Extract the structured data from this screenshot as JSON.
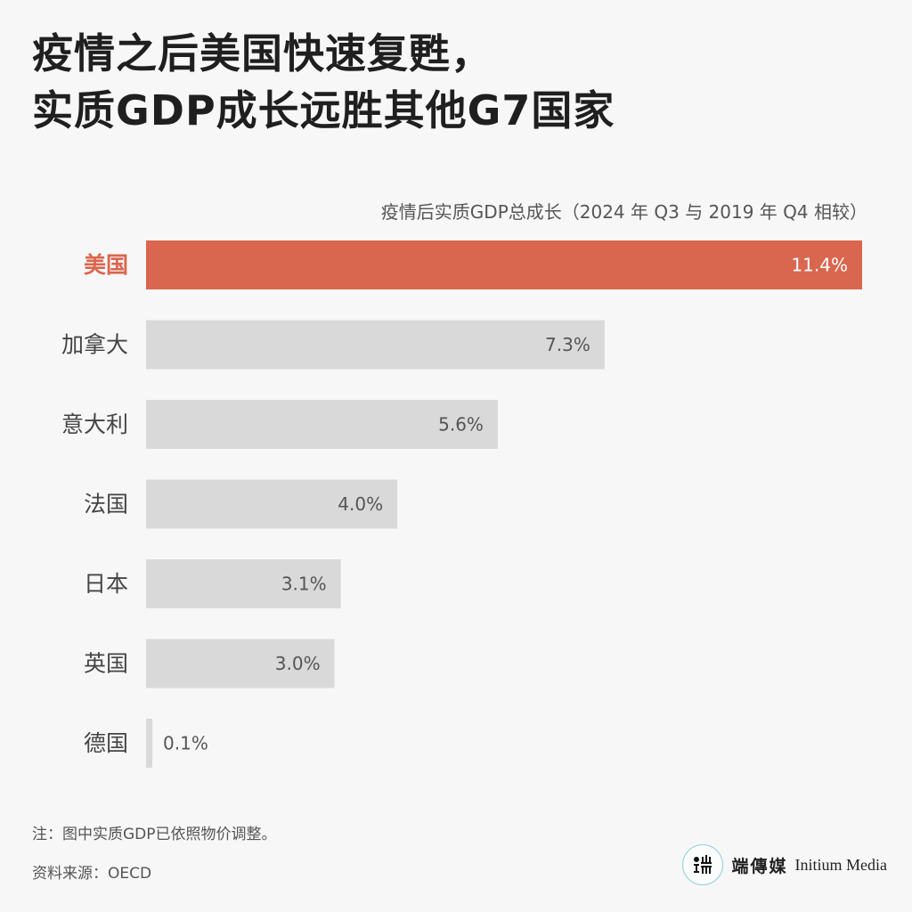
{
  "title": {
    "line1": "疫情之后美国快速复甦，",
    "line2": "实质GDP成长远胜其他G7国家"
  },
  "chart_data": {
    "type": "bar",
    "orientation": "horizontal",
    "title": "疫情后实质GDP总成长（2024 年 Q3 与 2019 年 Q4 相较）",
    "categories": [
      "美国",
      "加拿大",
      "意大利",
      "法国",
      "日本",
      "英国",
      "德国"
    ],
    "values": [
      11.4,
      7.3,
      5.6,
      4.0,
      3.1,
      3.0,
      0.1
    ],
    "value_labels": [
      "11.4%",
      "7.3%",
      "5.6%",
      "4.0%",
      "3.1%",
      "3.0%",
      "0.1%"
    ],
    "unit": "%",
    "highlight_index": 0,
    "xlim": [
      0,
      11.4
    ],
    "grid": false,
    "legend": "none",
    "colors": {
      "highlight": "#d9664e",
      "default": "#d9d9d9"
    }
  },
  "footer": {
    "note": "注：图中实质GDP已依照物价调整。",
    "source": "资料来源：OECD"
  },
  "brand": {
    "name_zh": "端傳媒",
    "name_en": "Initium Media",
    "logo_icon": "initium-logo-icon"
  }
}
